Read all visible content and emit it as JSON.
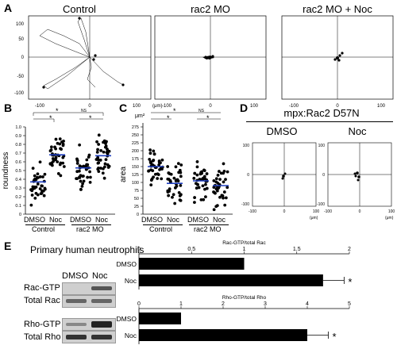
{
  "panels": {
    "a": "A",
    "b": "B",
    "c": "C",
    "d": "D",
    "e": "E"
  },
  "panelA": {
    "titles": [
      "Control",
      "rac2 MO",
      "rac2 MO + Noc"
    ],
    "xticks": [
      "-100",
      "0",
      "100"
    ],
    "yticks": [
      "100",
      "50",
      "0",
      "-50",
      "-100"
    ],
    "unit": "(μm)"
  },
  "panelB": {
    "ylabel": "roundness",
    "yticks": [
      "1.0",
      "0.9",
      "0.8",
      "0.7",
      "0.6",
      "0.5",
      "0.4",
      "0.3",
      "0.2",
      "0.1",
      "0"
    ],
    "xlabels": [
      "DMSO",
      "Noc",
      "DMSO",
      "Noc"
    ],
    "groups": [
      "Control",
      "rac2 MO"
    ],
    "sig": [
      "*",
      "NS",
      "*",
      "*"
    ]
  },
  "panelC": {
    "unit": "μm²",
    "ylabel": "area",
    "yticks": [
      "275",
      "250",
      "225",
      "200",
      "175",
      "150",
      "125",
      "100",
      "75",
      "50",
      "25",
      "0"
    ],
    "xlabels": [
      "DMSO",
      "Noc",
      "DMSO",
      "Noc"
    ],
    "groups": [
      "Control",
      "rac2 MO"
    ],
    "sig": [
      "*",
      "NS",
      "*",
      "*"
    ]
  },
  "panelD": {
    "title": "mpx:Rac2 D57N",
    "subtitles": [
      "DMSO",
      "Noc"
    ],
    "xticks": [
      "-100",
      "0",
      "100"
    ],
    "yticks": [
      "100",
      "0",
      "-100"
    ],
    "unit": "(μm)"
  },
  "panelE": {
    "title": "Primary human neutrophils",
    "blot_cols": [
      "DMSO",
      "Noc"
    ],
    "blot_rows": [
      "Rac-GTP",
      "Total Rac",
      "Rho-GTP",
      "Total Rho"
    ],
    "star": "*"
  },
  "chart_data": [
    {
      "type": "bar",
      "title": "Rac-GTP/total Rac",
      "orientation": "horizontal",
      "categories": [
        "DMSO",
        "Noc"
      ],
      "values": [
        1.0,
        1.75
      ],
      "errors": [
        0,
        0.2
      ],
      "xlim": [
        0,
        2
      ],
      "ticks": [
        "0",
        "0.5",
        "1",
        "1.5",
        "2"
      ],
      "annotation": "*"
    },
    {
      "type": "bar",
      "title": "Rho-GTP/total Rho",
      "orientation": "horizontal",
      "categories": [
        "DMSO",
        "Noc"
      ],
      "values": [
        1.0,
        4.0
      ],
      "errors": [
        0,
        0.5
      ],
      "xlim": [
        0,
        5
      ],
      "ticks": [
        "0",
        "1",
        "2",
        "3",
        "4",
        "5"
      ],
      "annotation": "*"
    },
    {
      "type": "scatter",
      "title": "roundness",
      "categories": [
        "Control DMSO",
        "Control Noc",
        "rac2 MO DMSO",
        "rac2 MO Noc"
      ],
      "means": [
        0.37,
        0.68,
        0.53,
        0.67
      ],
      "ylim": [
        0,
        1
      ]
    },
    {
      "type": "scatter",
      "title": "area",
      "categories": [
        "Control DMSO",
        "Control Noc",
        "rac2 MO DMSO",
        "rac2 MO Noc"
      ],
      "means": [
        150,
        97,
        105,
        90
      ],
      "ylim": [
        0,
        275
      ]
    }
  ]
}
